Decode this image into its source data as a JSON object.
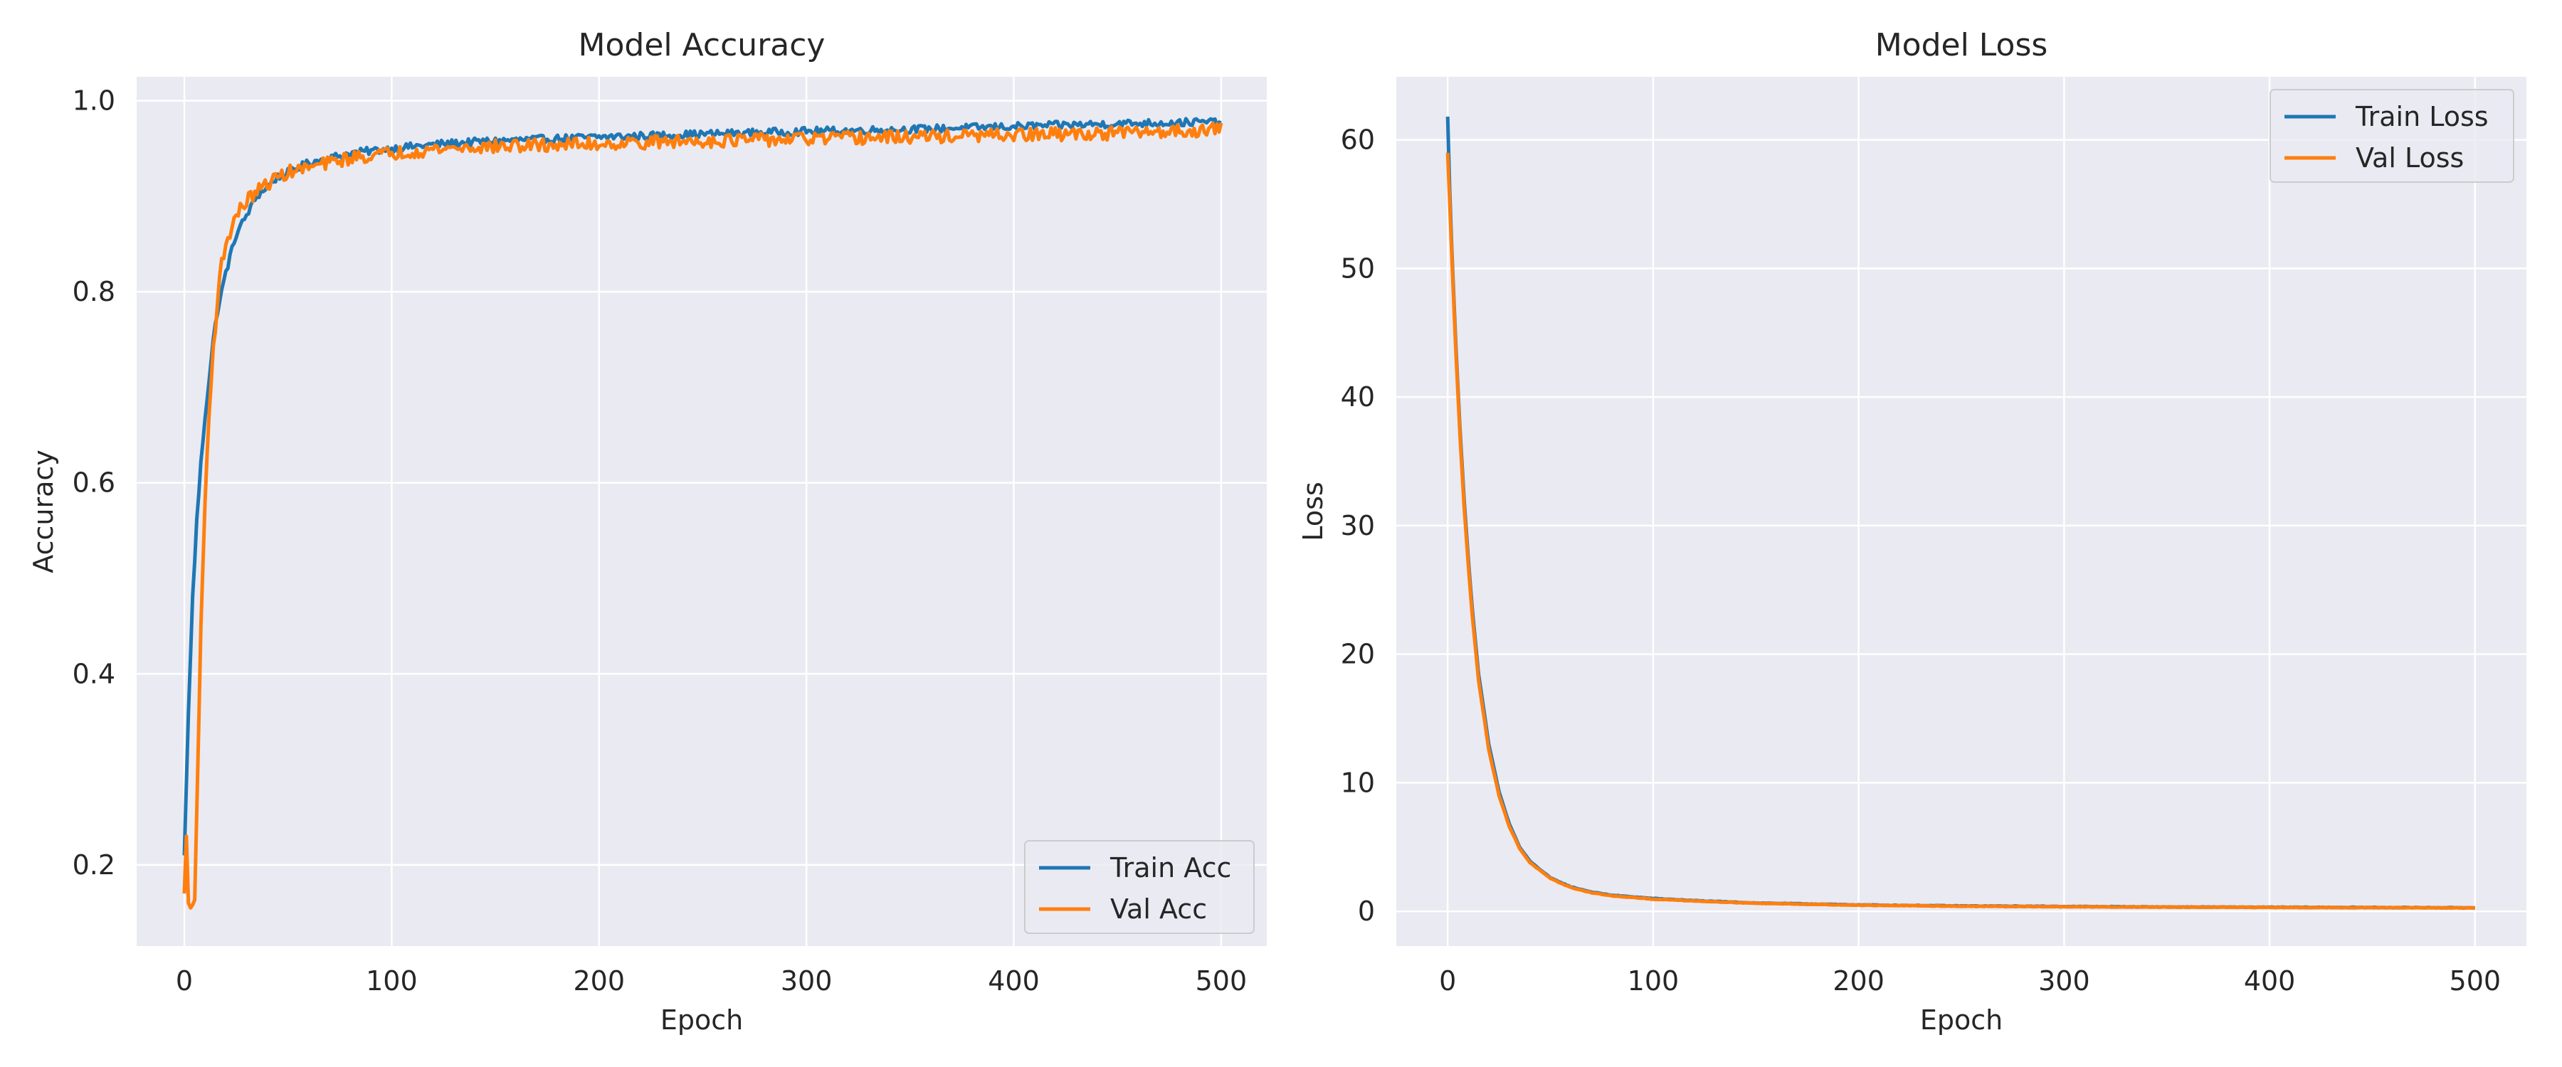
{
  "figure": {
    "background": "#ffffff",
    "plot_background": "#eaeaf2",
    "grid_color": "#ffffff",
    "text_color": "#262626",
    "train_color": "#1f77b4",
    "val_color": "#ff7f0e"
  },
  "chart_data": [
    {
      "type": "line",
      "title": "Model Accuracy",
      "xlabel": "Epoch",
      "ylabel": "Accuracy",
      "xlim": [
        -23,
        522
      ],
      "ylim": [
        0.115,
        1.025
      ],
      "xticks": [
        0,
        100,
        200,
        300,
        400,
        500
      ],
      "yticks": [
        0.2,
        0.4,
        0.6,
        0.8,
        1.0
      ],
      "xtick_labels": [
        "0",
        "100",
        "200",
        "300",
        "400",
        "500"
      ],
      "ytick_labels": [
        "0.2",
        "0.4",
        "0.6",
        "0.8",
        "1.0"
      ],
      "grid": true,
      "legend_position": "lower-right",
      "series": [
        {
          "name": "Train Acc",
          "color": "#1f77b4",
          "x": [
            0,
            2,
            4,
            6,
            8,
            10,
            12,
            14,
            16,
            18,
            20,
            25,
            30,
            35,
            40,
            45,
            50,
            60,
            70,
            80,
            100,
            125,
            150,
            200,
            250,
            300,
            350,
            400,
            450,
            500
          ],
          "y": [
            0.21,
            0.36,
            0.48,
            0.56,
            0.62,
            0.67,
            0.71,
            0.75,
            0.78,
            0.8,
            0.82,
            0.86,
            0.88,
            0.9,
            0.91,
            0.92,
            0.925,
            0.935,
            0.94,
            0.945,
            0.95,
            0.955,
            0.958,
            0.962,
            0.965,
            0.968,
            0.97,
            0.973,
            0.976,
            0.978
          ],
          "noise": 0.004
        },
        {
          "name": "Val Acc",
          "color": "#ff7f0e",
          "x": [
            0,
            1,
            2,
            3,
            4,
            5,
            6,
            8,
            10,
            12,
            14,
            16,
            18,
            20,
            25,
            30,
            35,
            40,
            45,
            50,
            60,
            70,
            80,
            100,
            125,
            150,
            200,
            250,
            300,
            350,
            400,
            450,
            500
          ],
          "y": [
            0.17,
            0.23,
            0.16,
            0.155,
            0.155,
            0.17,
            0.25,
            0.45,
            0.58,
            0.68,
            0.74,
            0.79,
            0.83,
            0.85,
            0.88,
            0.895,
            0.905,
            0.913,
            0.92,
            0.925,
            0.93,
            0.935,
            0.94,
            0.945,
            0.95,
            0.952,
            0.955,
            0.958,
            0.96,
            0.962,
            0.964,
            0.966,
            0.97
          ],
          "noise": 0.007
        }
      ]
    },
    {
      "type": "line",
      "title": "Model Loss",
      "xlabel": "Epoch",
      "ylabel": "Loss",
      "xlim": [
        -25,
        525
      ],
      "ylim": [
        -2.7,
        64.9
      ],
      "xticks": [
        0,
        100,
        200,
        300,
        400,
        500
      ],
      "yticks": [
        0,
        10,
        20,
        30,
        40,
        50,
        60
      ],
      "xtick_labels": [
        "0",
        "100",
        "200",
        "300",
        "400",
        "500"
      ],
      "ytick_labels": [
        "0",
        "10",
        "20",
        "30",
        "40",
        "50",
        "60"
      ],
      "grid": true,
      "legend_position": "upper-right",
      "series": [
        {
          "name": "Train Loss",
          "color": "#1f77b4",
          "x": [
            0,
            1,
            2,
            4,
            6,
            8,
            10,
            12,
            15,
            20,
            25,
            30,
            35,
            40,
            50,
            60,
            70,
            80,
            100,
            125,
            150,
            200,
            250,
            300,
            350,
            400,
            450,
            500
          ],
          "y": [
            61.8,
            56.0,
            51.5,
            44.0,
            37.5,
            32.0,
            27.5,
            23.5,
            18.5,
            13.0,
            9.3,
            6.8,
            5.0,
            3.9,
            2.6,
            1.9,
            1.5,
            1.25,
            1.0,
            0.8,
            0.65,
            0.5,
            0.42,
            0.38,
            0.34,
            0.32,
            0.3,
            0.28
          ],
          "noise": 0.02
        },
        {
          "name": "Val Loss",
          "color": "#ff7f0e",
          "x": [
            0,
            1,
            2,
            4,
            6,
            8,
            10,
            12,
            15,
            20,
            25,
            30,
            35,
            40,
            50,
            60,
            70,
            80,
            100,
            125,
            150,
            200,
            250,
            300,
            350,
            400,
            450,
            500
          ],
          "y": [
            59.0,
            55.0,
            51.0,
            43.5,
            37.0,
            31.5,
            27.0,
            23.0,
            18.0,
            12.6,
            9.0,
            6.6,
            4.9,
            3.8,
            2.55,
            1.85,
            1.45,
            1.2,
            0.95,
            0.78,
            0.63,
            0.48,
            0.4,
            0.36,
            0.33,
            0.31,
            0.29,
            0.27
          ],
          "noise": 0.02
        }
      ]
    }
  ]
}
